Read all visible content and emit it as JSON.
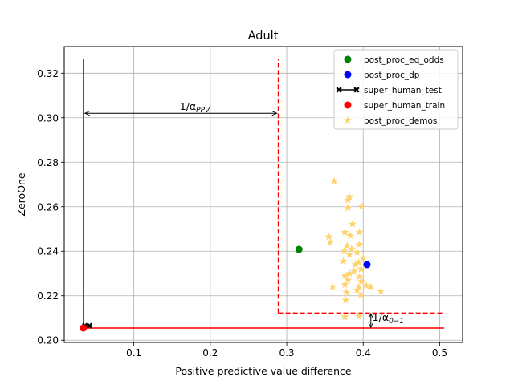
{
  "chart_data": {
    "type": "scatter",
    "title": "Adult",
    "xlabel": "Positive predictive value difference",
    "ylabel": "ZeroOne",
    "xlim": [
      0.009,
      0.53
    ],
    "ylim": [
      0.199,
      0.332
    ],
    "x_ticks": [
      0.1,
      0.2,
      0.3,
      0.4,
      0.5
    ],
    "y_ticks": [
      0.2,
      0.22,
      0.24,
      0.26,
      0.28,
      0.3,
      0.32
    ],
    "x_tick_labels": [
      "0.1",
      "0.2",
      "0.3",
      "0.4",
      "0.5"
    ],
    "y_tick_labels": [
      "0.20",
      "0.22",
      "0.24",
      "0.26",
      "0.28",
      "0.30",
      "0.32"
    ],
    "grid": true,
    "legend_position": "top-right",
    "series": [
      {
        "name": "post_proc_eq_odds",
        "marker": "circle",
        "color": "#008000",
        "points": [
          [
            0.316,
            0.2408
          ]
        ]
      },
      {
        "name": "post_proc_dp",
        "marker": "circle",
        "color": "#0000ff",
        "points": [
          [
            0.405,
            0.234
          ]
        ]
      },
      {
        "name": "super_human_test",
        "marker": "x-line",
        "color": "#000000",
        "points": [
          [
            0.036,
            0.2065
          ],
          [
            0.042,
            0.2065
          ]
        ]
      },
      {
        "name": "super_human_train",
        "marker": "circle",
        "color": "#ff0000",
        "points": [
          [
            0.034,
            0.2055
          ]
        ]
      },
      {
        "name": "post_proc_demos",
        "marker": "star",
        "color": "#ffd36e",
        "points": [
          [
            0.362,
            0.2715
          ],
          [
            0.382,
            0.2645
          ],
          [
            0.38,
            0.263
          ],
          [
            0.398,
            0.2603
          ],
          [
            0.38,
            0.2595
          ],
          [
            0.386,
            0.2522
          ],
          [
            0.376,
            0.2485
          ],
          [
            0.395,
            0.2485
          ],
          [
            0.383,
            0.247
          ],
          [
            0.355,
            0.2465
          ],
          [
            0.357,
            0.244
          ],
          [
            0.395,
            0.243
          ],
          [
            0.379,
            0.2425
          ],
          [
            0.385,
            0.241
          ],
          [
            0.375,
            0.24
          ],
          [
            0.392,
            0.2395
          ],
          [
            0.382,
            0.2385
          ],
          [
            0.4,
            0.237
          ],
          [
            0.374,
            0.2355
          ],
          [
            0.394,
            0.235
          ],
          [
            0.39,
            0.234
          ],
          [
            0.397,
            0.232
          ],
          [
            0.388,
            0.231
          ],
          [
            0.382,
            0.23
          ],
          [
            0.376,
            0.229
          ],
          [
            0.395,
            0.2285
          ],
          [
            0.38,
            0.227
          ],
          [
            0.398,
            0.2265
          ],
          [
            0.376,
            0.225
          ],
          [
            0.36,
            0.224
          ],
          [
            0.394,
            0.224
          ],
          [
            0.404,
            0.2245
          ],
          [
            0.41,
            0.224
          ],
          [
            0.392,
            0.2225
          ],
          [
            0.378,
            0.2215
          ],
          [
            0.397,
            0.2205
          ],
          [
            0.423,
            0.222
          ],
          [
            0.377,
            0.218
          ],
          [
            0.376,
            0.2105
          ],
          [
            0.394,
            0.2108
          ]
        ]
      }
    ],
    "reference_lines": [
      {
        "style": "solid",
        "color": "#ff0000",
        "orientation": "vertical",
        "x": 0.034,
        "y_from": 0.2055,
        "y_to": 0.3265
      },
      {
        "style": "solid",
        "color": "#ff0000",
        "orientation": "horizontal",
        "y": 0.2055,
        "x_from": 0.034,
        "x_to": 0.506
      },
      {
        "style": "dashed",
        "color": "#ff0000",
        "orientation": "vertical",
        "x": 0.289,
        "y_from": 0.2122,
        "y_to": 0.3265
      },
      {
        "style": "dashed",
        "color": "#ff0000",
        "orientation": "horizontal",
        "y": 0.2122,
        "x_from": 0.289,
        "x_to": 0.506
      }
    ],
    "annotations": [
      {
        "label_base": "1/α",
        "label_sub": "PPV",
        "type": "double-arrow-horizontal",
        "from": [
          0.036,
          0.302
        ],
        "to": [
          0.287,
          0.302
        ],
        "text_at": [
          0.16,
          0.3036
        ]
      },
      {
        "label_base": "1/α",
        "label_sub": "0−1",
        "type": "double-arrow-vertical",
        "from": [
          0.41,
          0.2057
        ],
        "to": [
          0.41,
          0.212
        ],
        "text_at": [
          0.412,
          0.2088
        ]
      }
    ]
  }
}
